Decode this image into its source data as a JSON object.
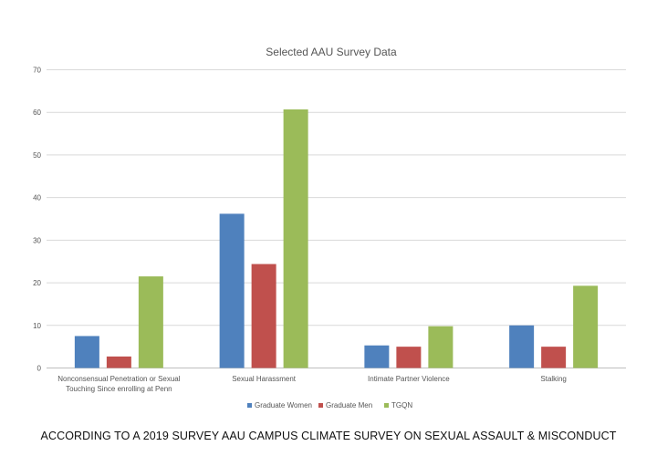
{
  "caption": "ACCORDING TO A 2019 SURVEY AAU CAMPUS CLIMATE SURVEY ON SEXUAL ASSAULT & MISCONDUCT",
  "chart_data": {
    "type": "bar",
    "title": "Selected AAU Survey Data",
    "categories": [
      [
        "Nonconsensual Penetration or Sexual",
        "Touching Since enrolling at Penn"
      ],
      [
        "Sexual Harassment"
      ],
      [
        "Intimate Partner Violence"
      ],
      [
        "Stalking"
      ]
    ],
    "series": [
      {
        "name": "Graduate Women",
        "color": "#4f81bd",
        "values": [
          7.5,
          36.2,
          5.3,
          10.0
        ]
      },
      {
        "name": "Graduate Men",
        "color": "#c0504d",
        "values": [
          2.7,
          24.4,
          5.0,
          5.0
        ]
      },
      {
        "name": "TGQN",
        "color": "#9bbb59",
        "values": [
          21.5,
          60.7,
          9.8,
          19.3
        ]
      }
    ],
    "yticks": [
      "0",
      "10",
      "20",
      "30",
      "40",
      "50",
      "60",
      "70"
    ],
    "ylim": [
      0,
      70
    ],
    "grid": true,
    "legend": "bottom"
  }
}
